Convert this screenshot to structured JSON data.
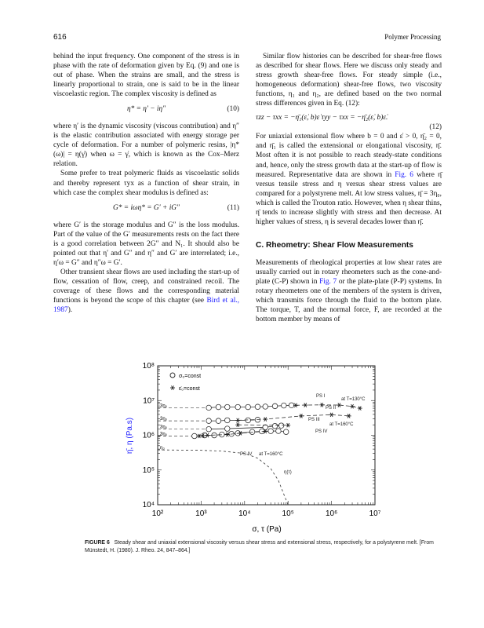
{
  "header": {
    "page_number": "616",
    "running_head": "Polymer Processing"
  },
  "left": {
    "p1": "behind the input frequency. One component of the stress is in phase with the rate of deformation given by Eq. (9) and one is out of phase. When the strains are small, and the stress is linearly proportional to strain, one is said to be in the linear viscoelastic region. The complex viscosity is defined as",
    "eq10": "η* = η′ − iη″",
    "eq10_num": "(10)",
    "p2": "where η′ is the dynamic viscosity (viscous contribution) and η″ is the elastic contribution associated with energy storage per cycle of deformation. For a number of polymeric resins, |η*(ω)| = η(γ̇) when ω = γ̇, which is known as the Cox–Merz relation.",
    "p3": "Some prefer to treat polymeric fluids as viscoelastic solids and thereby represent τyx as a function of shear strain, in which case the complex shear modulus is defined as:",
    "eq11": "G* = iωη* = G′ + iG″",
    "eq11_num": "(11)",
    "p4": "where G′ is the storage modulus and G″ is the loss modulus. Part of the value of the G′ measurements rests on the fact there is a good correlation between 2G″ and N₁. It should also be pointed out that η′ and G″ and η″ and G′ are interrelated; i.e., η′ω = G″ and η″ω = G′.",
    "p5": "Other transient shear flows are used including the start-up of flow, cessation of flow, creep, and constrained recoil. The coverage of these flows and the corresponding material functions is beyond the scope of this chapter (see",
    "p5_link": "Bird et al., 1987",
    "p5_end": ")."
  },
  "right": {
    "p1": "Similar flow histories can be described for shear-free flows as described for shear flows. Here we discuss only steady and stress growth shear-free flows. For steady simple (i.e., homogeneous deformation) shear-free flows, two viscosity functions, η₁ and η₂, are defined based on the two normal stress differences given in Eq. (12):",
    "eq12": "τzz − τxx = −η̄₁(ε̇, b)ε̇      τyy − τxx = −η̄₂(ε̇, b)ε̇.",
    "eq12_num": "(12)",
    "p2a": "For uniaxial extensional flow where b = 0 and ε̇ > 0, η̄₂ = 0, and η̄₁ is called the extensional or elongational viscosity, η̄. Most often it is not possible to reach steady-state conditions and, hence, only the stress growth data at the start-up of flow is measured. Representative data are shown in",
    "p2_link": "Fig. 6",
    "p2b": "where η̄ versus tensile stress and η versus shear stress values are compared for a polystyrene melt. At low stress values, η̄ = 3η₀, which is called the Trouton ratio. However, when η shear thins, η̄ tends to increase slightly with stress and then decrease. At higher values of stress, η is several decades lower than η̄.",
    "heading": "C. Rheometry: Shear Flow Measurements",
    "p3a": "Measurements of rheological properties at low shear rates are usually carried out in rotary rheometers such as the cone-and-plate (C-P) shown in",
    "p3_link": "Fig. 7",
    "p3b": "or the plate-plate (P-P) systems. In rotary rheometers one of the members of the system is driven, which transmits force through the fluid to the bottom plate. The torque, T, and the normal force, F, are recorded at the bottom member by means of"
  },
  "figure": {
    "caption_label": "FIGURE 6",
    "caption_text": "Steady shear and uniaxial extensional viscosity versus shear stress and extensional stress, respectively, for a polystyrene melt. [From Münstedt, H. (1980). J. Rheo. 24, 847–864.]"
  },
  "chart_data": {
    "type": "scatter",
    "xlabel": "σ, τ (Pa)",
    "ylabel": "η̄, η (Pa.s)",
    "xscale": "log",
    "yscale": "log",
    "xlim": [
      100,
      10000000
    ],
    "ylim": [
      10000,
      100000000
    ],
    "xticks": [
      "10²",
      "10³",
      "10⁴",
      "10⁵",
      "10⁶",
      "10⁷"
    ],
    "yticks": [
      "10⁴",
      "10⁵",
      "10⁶",
      "10⁷",
      "10⁸"
    ],
    "legend": [
      {
        "marker": "circle",
        "label": "σ₀=const"
      },
      {
        "marker": "star",
        "label": "ε̇₀=const"
      }
    ],
    "legend_placement": "top-left",
    "series": [
      {
        "name": "PS I",
        "label_low": "3η₀",
        "marker": "circle",
        "x": [
          1500,
          2500,
          4000,
          7000,
          12000,
          20000,
          30000,
          50000,
          80000,
          120000
        ],
        "y": [
          6200000,
          6500000,
          6500000,
          6500000,
          6500000,
          6600000,
          6700000,
          6900000,
          7200000,
          7300000
        ]
      },
      {
        "name": "PS I",
        "marker": "star",
        "x": [
          150000,
          250000,
          600000,
          1500000,
          3000000,
          4500000
        ],
        "y": [
          7300000,
          7400000,
          7500000,
          7400000,
          6800000,
          6000000
        ]
      },
      {
        "name": "PS II",
        "label_low": "3η₀",
        "marker": "circle",
        "x": [
          1500,
          2500,
          4000,
          12000,
          20000
        ],
        "y": [
          2600000,
          2600000,
          2700000,
          2700000,
          2800000
        ]
      },
      {
        "name": "PS II",
        "marker": "star",
        "x": [
          7000,
          30000,
          200000,
          1000000,
          2500000
        ],
        "y": [
          2700000,
          2900000,
          3600000,
          3900000,
          3600000
        ]
      },
      {
        "name": "PS III",
        "label_low": "3η₀",
        "marker": "circle",
        "x": [
          1500,
          4000,
          30000,
          50000,
          70000
        ],
        "y": [
          1500000,
          1550000,
          1700000,
          1850000,
          1900000
        ]
      },
      {
        "name": "PS III",
        "marker": "star",
        "x": [
          7000,
          100000
        ],
        "y": [
          2000000,
          1950000
        ]
      },
      {
        "name": "PS IV",
        "label_low": "3η₀",
        "marker": "circle",
        "x": [
          700,
          1200,
          2000,
          3000,
          5000,
          7000,
          15000,
          25000,
          40000,
          60000,
          90000
        ],
        "y": [
          950000,
          1000000,
          1000000,
          1050000,
          1100000,
          1150000,
          1250000,
          1300000,
          1320000,
          1330000,
          1250000
        ]
      },
      {
        "name": "PS IV",
        "marker": "star",
        "x": [
          900,
          1100,
          1400,
          4000,
          8000,
          30000
        ],
        "y": [
          950000,
          980000,
          1000000,
          1050000,
          1150000,
          1300000
        ]
      },
      {
        "name": "η(τ)",
        "label_low": "η₀",
        "marker": "none",
        "x": [
          100,
          1000,
          3000,
          10000,
          20000,
          40000,
          60000,
          80000,
          100000
        ],
        "y": [
          380000,
          370000,
          350000,
          300000,
          220000,
          110000,
          50000,
          20000,
          10000
        ]
      }
    ],
    "annotations": [
      "PS I",
      "at T=130°C",
      "PS II",
      "PS III",
      "at T=160°C",
      "PS IV",
      "PS IV",
      "at T=160°C",
      "η(τ)"
    ]
  }
}
